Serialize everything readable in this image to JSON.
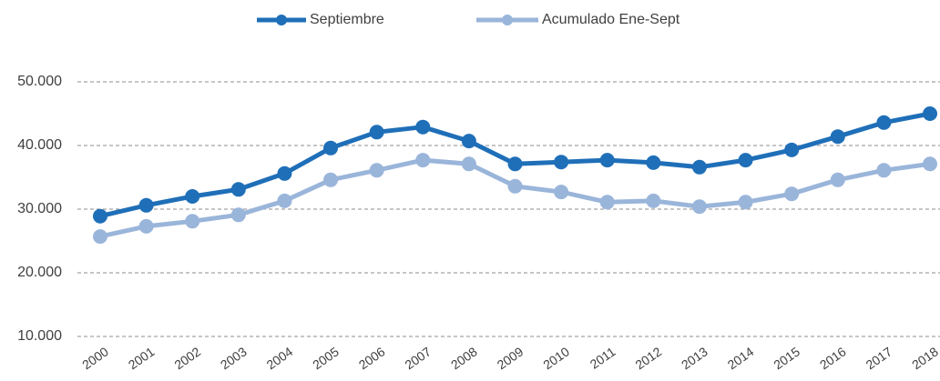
{
  "chart_data": {
    "type": "line",
    "categories": [
      "2000",
      "2001",
      "2002",
      "2003",
      "2004",
      "2005",
      "2006",
      "2007",
      "2008",
      "2009",
      "2010",
      "2011",
      "2012",
      "2013",
      "2014",
      "2015",
      "2016",
      "2017",
      "2018"
    ],
    "series": [
      {
        "name": "Septiembre",
        "color": "#1f6fb8",
        "values": [
          28900,
          30600,
          32000,
          33100,
          35600,
          39600,
          42100,
          42900,
          40700,
          37100,
          37400,
          37700,
          37300,
          36600,
          37700,
          39300,
          41400,
          43600,
          45000
        ]
      },
      {
        "name": "Acumulado Ene-Sept",
        "color": "#9ab5da",
        "values": [
          25700,
          27300,
          28100,
          29100,
          31300,
          34600,
          36100,
          37700,
          37100,
          33600,
          32700,
          31100,
          31300,
          30400,
          31100,
          32400,
          34600,
          36100,
          37100
        ]
      }
    ],
    "ylim": [
      10000,
      50000
    ],
    "yticks": [
      {
        "value": 10000,
        "label": "10.000"
      },
      {
        "value": 20000,
        "label": "20.000"
      },
      {
        "value": 30000,
        "label": "30.000"
      },
      {
        "value": 40000,
        "label": "40.000"
      },
      {
        "value": 50000,
        "label": "50.000"
      }
    ],
    "grid": true,
    "legend": "top"
  }
}
